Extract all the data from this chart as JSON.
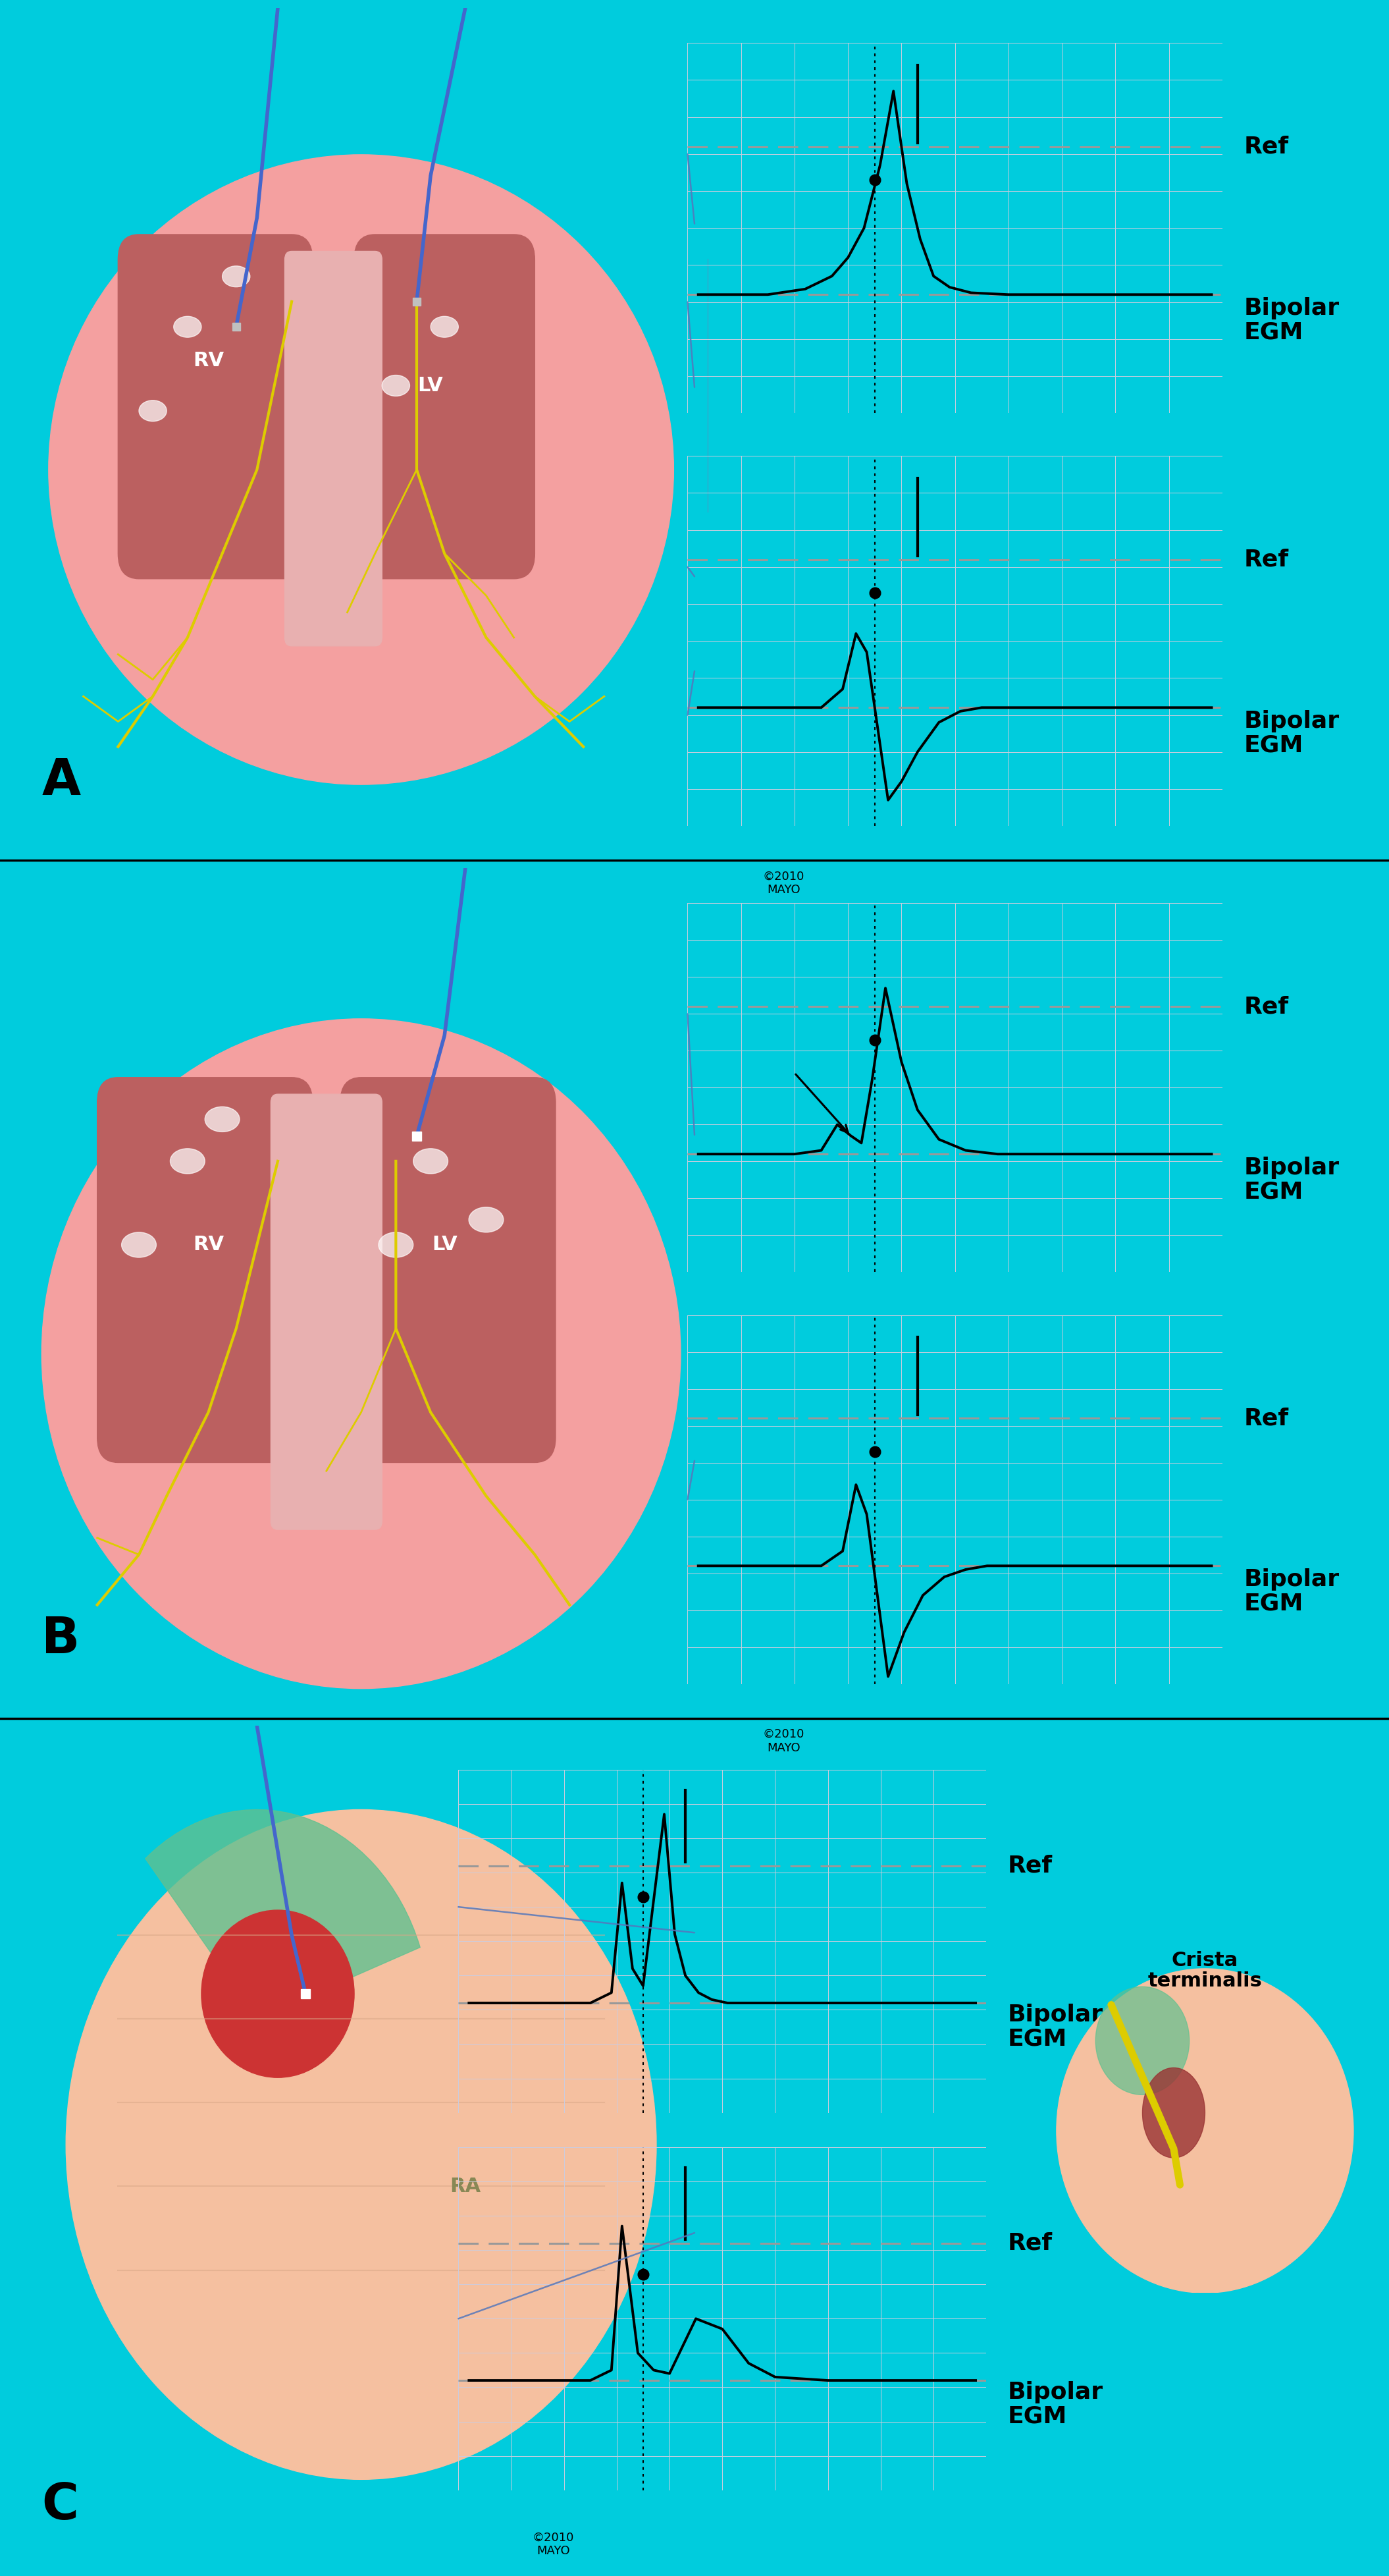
{
  "bg_color": "#00CCDD",
  "panel_bg": "#EEEEF8",
  "panel_border": "#AAAACC",
  "grid_color": "#CCCCDD",
  "dash_color": "#999999",
  "text_color": "#000000",
  "label_fontsize": 26,
  "section_label_fontsize": 55,
  "ref_label": "Ref",
  "bipolar_label": "Bipolar\nEGM",
  "copyright_text": "©2010\nMAYO",
  "heart_color": "#F4A0A0",
  "heart_inner": "#C06060",
  "purkinje_color": "#DDCC00",
  "catheter_color": "#4466CC",
  "connector_color": "#4466AA"
}
